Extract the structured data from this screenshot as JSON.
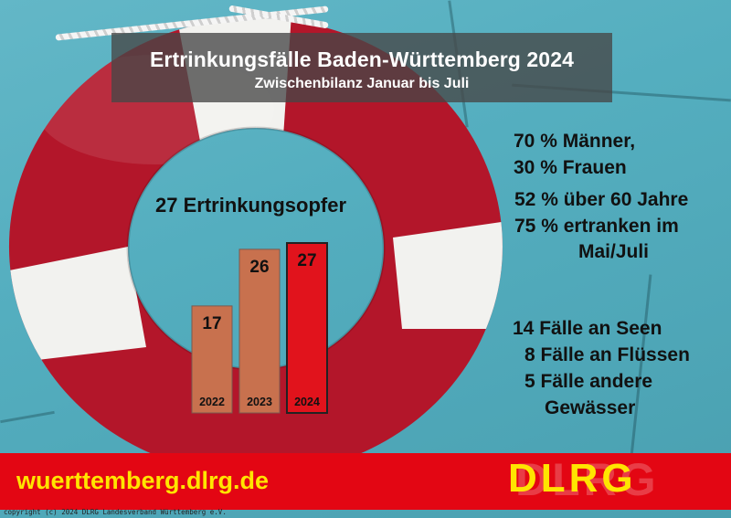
{
  "header": {
    "title": "Ertrinkungsfälle Baden-Württemberg 2024",
    "subtitle": "Zwischenbilanz Januar bis Juli"
  },
  "stats_gender": {
    "line1": "70 % Männer,",
    "line2": "30 % Frauen"
  },
  "stats_age": {
    "line1": "52 % über 60 Jahre",
    "line2": "75 % ertranken im",
    "line3": "Mai/Juli"
  },
  "stats_locations": {
    "line1": "14 Fälle an Seen",
    "line2": "8 Fälle an Flüssen",
    "line3": "5 Fälle andere",
    "line4": "Gewässer"
  },
  "footer": {
    "url": "wuerttemberg.dlrg.de",
    "copyright": "copyright (c) 2024 DLRG Landesverband Württemberg e.V.",
    "logo_text": "DLRG"
  },
  "colors": {
    "bar_past": "#c8714e",
    "bar_current": "#e1131c",
    "footer_red": "#e30613",
    "logo_yellow": "#ffe500"
  },
  "chart_data": {
    "type": "bar",
    "title": "27 Ertrinkungsopfer",
    "categories": [
      "2022",
      "2023",
      "2024"
    ],
    "values": [
      17,
      26,
      27
    ],
    "ylim": [
      0,
      27
    ],
    "grid": false,
    "legend": "none"
  }
}
